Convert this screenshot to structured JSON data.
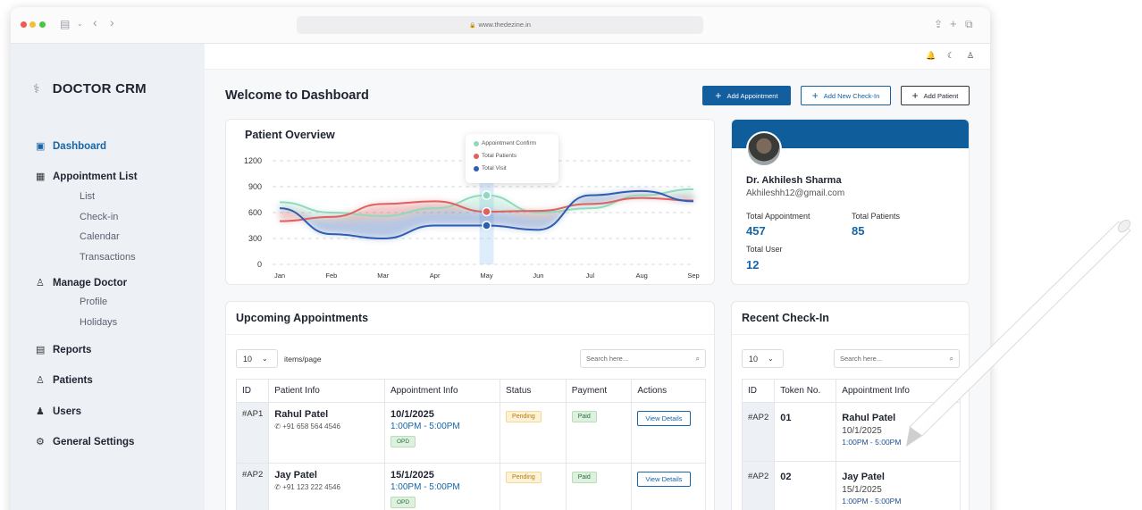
{
  "browser": {
    "url": "www.thedezine.in"
  },
  "brand": {
    "name": "DOCTOR CRM"
  },
  "sidebar": {
    "items": [
      {
        "label": "Dashboard"
      },
      {
        "label": "Appointment List",
        "children": [
          "List",
          "Check-in",
          "Calendar",
          "Transactions"
        ]
      },
      {
        "label": "Manage Doctor",
        "children": [
          "Profile",
          "Holidays"
        ]
      },
      {
        "label": "Reports"
      },
      {
        "label": "Patients"
      },
      {
        "label": "Users"
      },
      {
        "label": "General Settings"
      }
    ]
  },
  "header": {
    "title": "Welcome to Dashboard",
    "add_appointment": "Add Appointment",
    "add_checkin": "Add New Check-In",
    "add_patient": "Add Patient"
  },
  "overview": {
    "title": "Patient Overview",
    "tooltip": [
      "Appointment Confirm",
      "Total Patients",
      "Total Visit"
    ]
  },
  "chart_data": {
    "type": "area",
    "categories": [
      "Jan",
      "Feb",
      "Mar",
      "Apr",
      "May",
      "Jun",
      "Jul",
      "Aug",
      "Sep"
    ],
    "y_ticks": [
      0,
      300,
      600,
      900,
      1200
    ],
    "ylim": [
      0,
      1200
    ],
    "grid": true,
    "highlight": "May",
    "series": [
      {
        "name": "Appointment Confirm",
        "color": "#8fd9bd",
        "values": [
          720,
          600,
          560,
          650,
          800,
          600,
          650,
          800,
          870
        ]
      },
      {
        "name": "Total Patients",
        "color": "#e06060",
        "values": [
          500,
          550,
          700,
          730,
          610,
          620,
          700,
          770,
          740
        ]
      },
      {
        "name": "Total Visit",
        "color": "#2f5db0",
        "values": [
          650,
          350,
          300,
          450,
          450,
          400,
          800,
          850,
          730
        ]
      }
    ]
  },
  "doctor": {
    "name": "Dr. Akhilesh Sharma",
    "email": "Akhileshh12@gmail.com",
    "total_appointment_label": "Total Appointment",
    "total_appointment": "457",
    "total_patients_label": "Total Patients",
    "total_patients": "85",
    "total_user_label": "Total User",
    "total_user": "12"
  },
  "upcoming": {
    "title": "Upcoming Appointments",
    "page_size": "10",
    "items_per_page": "items/page",
    "search_placeholder": "Search here...",
    "columns": [
      "ID",
      "Patient Info",
      "Appointment Info",
      "Status",
      "Payment",
      "Actions"
    ],
    "rows": [
      {
        "id": "#AP1",
        "name": "Rahul Patel",
        "phone": "+91 658 564 4546",
        "date": "10/1/2025",
        "time": "1:00PM - 5:00PM",
        "type": "OPD",
        "status": "Pending",
        "payment": "Paid",
        "action": "View Details"
      },
      {
        "id": "#AP2",
        "name": "Jay Patel",
        "phone": "+91 123 222 4546",
        "date": "15/1/2025",
        "time": "1:00PM - 5:00PM",
        "type": "OPD",
        "status": "Pending",
        "payment": "Paid",
        "action": "View Details"
      }
    ]
  },
  "recent": {
    "title": "Recent Check-In",
    "page_size": "10",
    "search_placeholder": "Search here...",
    "columns": [
      "ID",
      "Token No.",
      "Appointment Info"
    ],
    "rows": [
      {
        "id": "#AP2",
        "token": "01",
        "name": "Rahul Patel",
        "date": "10/1/2025",
        "time": "1:00PM - 5:00PM"
      },
      {
        "id": "#AP2",
        "token": "02",
        "name": "Jay Patel",
        "date": "15/1/2025",
        "time": "1:00PM - 5:00PM"
      }
    ]
  }
}
